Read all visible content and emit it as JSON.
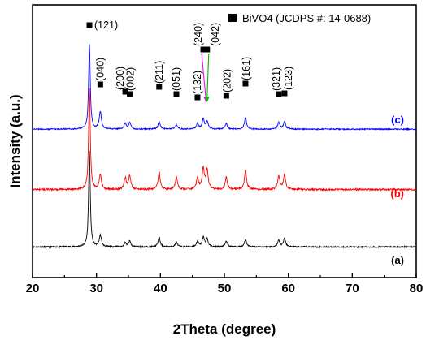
{
  "chart_data": {
    "type": "line",
    "xlabel": "2Theta (degree)",
    "ylabel": "Intensity (a.u.)",
    "xlim": [
      20,
      80
    ],
    "x_ticks": [
      "20",
      "30",
      "40",
      "50",
      "60",
      "70",
      "80"
    ],
    "grid": false,
    "legend": {
      "text": "BiVO4 (JCDPS #: 14-0688)",
      "marker": "filled-square",
      "placement": "top-right"
    },
    "peaks": [
      {
        "x": 28.9,
        "hkl": "(121)",
        "color": "#000000"
      },
      {
        "x": 30.6,
        "hkl": "(040)",
        "color": "#000000"
      },
      {
        "x": 34.5,
        "hkl": "(200)",
        "color": "#ff00ff"
      },
      {
        "x": 35.2,
        "hkl": "(002)",
        "color": "#00bb00"
      },
      {
        "x": 39.8,
        "hkl": "(211)",
        "color": "#000000"
      },
      {
        "x": 42.5,
        "hkl": "(051)",
        "color": "#000000"
      },
      {
        "x": 45.8,
        "hkl": "(132)",
        "color": "#000000"
      },
      {
        "x": 46.7,
        "hkl": "(240)",
        "color": "#ff00ff"
      },
      {
        "x": 47.3,
        "hkl": "(042)",
        "color": "#00bb00"
      },
      {
        "x": 50.3,
        "hkl": "(202)",
        "color": "#000000"
      },
      {
        "x": 53.3,
        "hkl": "(161)",
        "color": "#000000"
      },
      {
        "x": 58.5,
        "hkl": "(321)",
        "color": "#000000"
      },
      {
        "x": 59.4,
        "hkl": "(123)",
        "color": "#000000"
      }
    ],
    "series": [
      {
        "name": "(a)",
        "color": "#000000",
        "baseline": 0.15,
        "noise": 0.007,
        "peaks": [
          {
            "x": 28.9,
            "h": 1.0
          },
          {
            "x": 30.6,
            "h": 0.12
          },
          {
            "x": 34.5,
            "h": 0.04
          },
          {
            "x": 35.2,
            "h": 0.06
          },
          {
            "x": 39.8,
            "h": 0.1
          },
          {
            "x": 42.5,
            "h": 0.05
          },
          {
            "x": 45.8,
            "h": 0.06
          },
          {
            "x": 46.7,
            "h": 0.1
          },
          {
            "x": 47.3,
            "h": 0.08
          },
          {
            "x": 50.3,
            "h": 0.06
          },
          {
            "x": 53.3,
            "h": 0.08
          },
          {
            "x": 58.5,
            "h": 0.07
          },
          {
            "x": 59.4,
            "h": 0.09
          }
        ]
      },
      {
        "name": "(b)",
        "color": "#ff0000",
        "baseline": 0.75,
        "noise": 0.009,
        "peaks": [
          {
            "x": 28.9,
            "h": 1.05
          },
          {
            "x": 30.6,
            "h": 0.15
          },
          {
            "x": 34.5,
            "h": 0.12
          },
          {
            "x": 35.2,
            "h": 0.14
          },
          {
            "x": 39.8,
            "h": 0.18
          },
          {
            "x": 42.5,
            "h": 0.13
          },
          {
            "x": 45.8,
            "h": 0.12
          },
          {
            "x": 46.7,
            "h": 0.22
          },
          {
            "x": 47.3,
            "h": 0.2
          },
          {
            "x": 50.3,
            "h": 0.13
          },
          {
            "x": 53.3,
            "h": 0.2
          },
          {
            "x": 58.5,
            "h": 0.14
          },
          {
            "x": 59.4,
            "h": 0.16
          }
        ]
      },
      {
        "name": "(c)",
        "color": "#0000ff",
        "baseline": 1.38,
        "noise": 0.006,
        "peaks": [
          {
            "x": 28.9,
            "h": 0.88
          },
          {
            "x": 30.6,
            "h": 0.18
          },
          {
            "x": 34.5,
            "h": 0.06
          },
          {
            "x": 35.2,
            "h": 0.07
          },
          {
            "x": 39.8,
            "h": 0.08
          },
          {
            "x": 42.5,
            "h": 0.05
          },
          {
            "x": 45.8,
            "h": 0.06
          },
          {
            "x": 46.7,
            "h": 0.1
          },
          {
            "x": 47.3,
            "h": 0.08
          },
          {
            "x": 50.3,
            "h": 0.06
          },
          {
            "x": 53.3,
            "h": 0.12
          },
          {
            "x": 58.5,
            "h": 0.07
          },
          {
            "x": 59.4,
            "h": 0.08
          }
        ]
      }
    ]
  }
}
